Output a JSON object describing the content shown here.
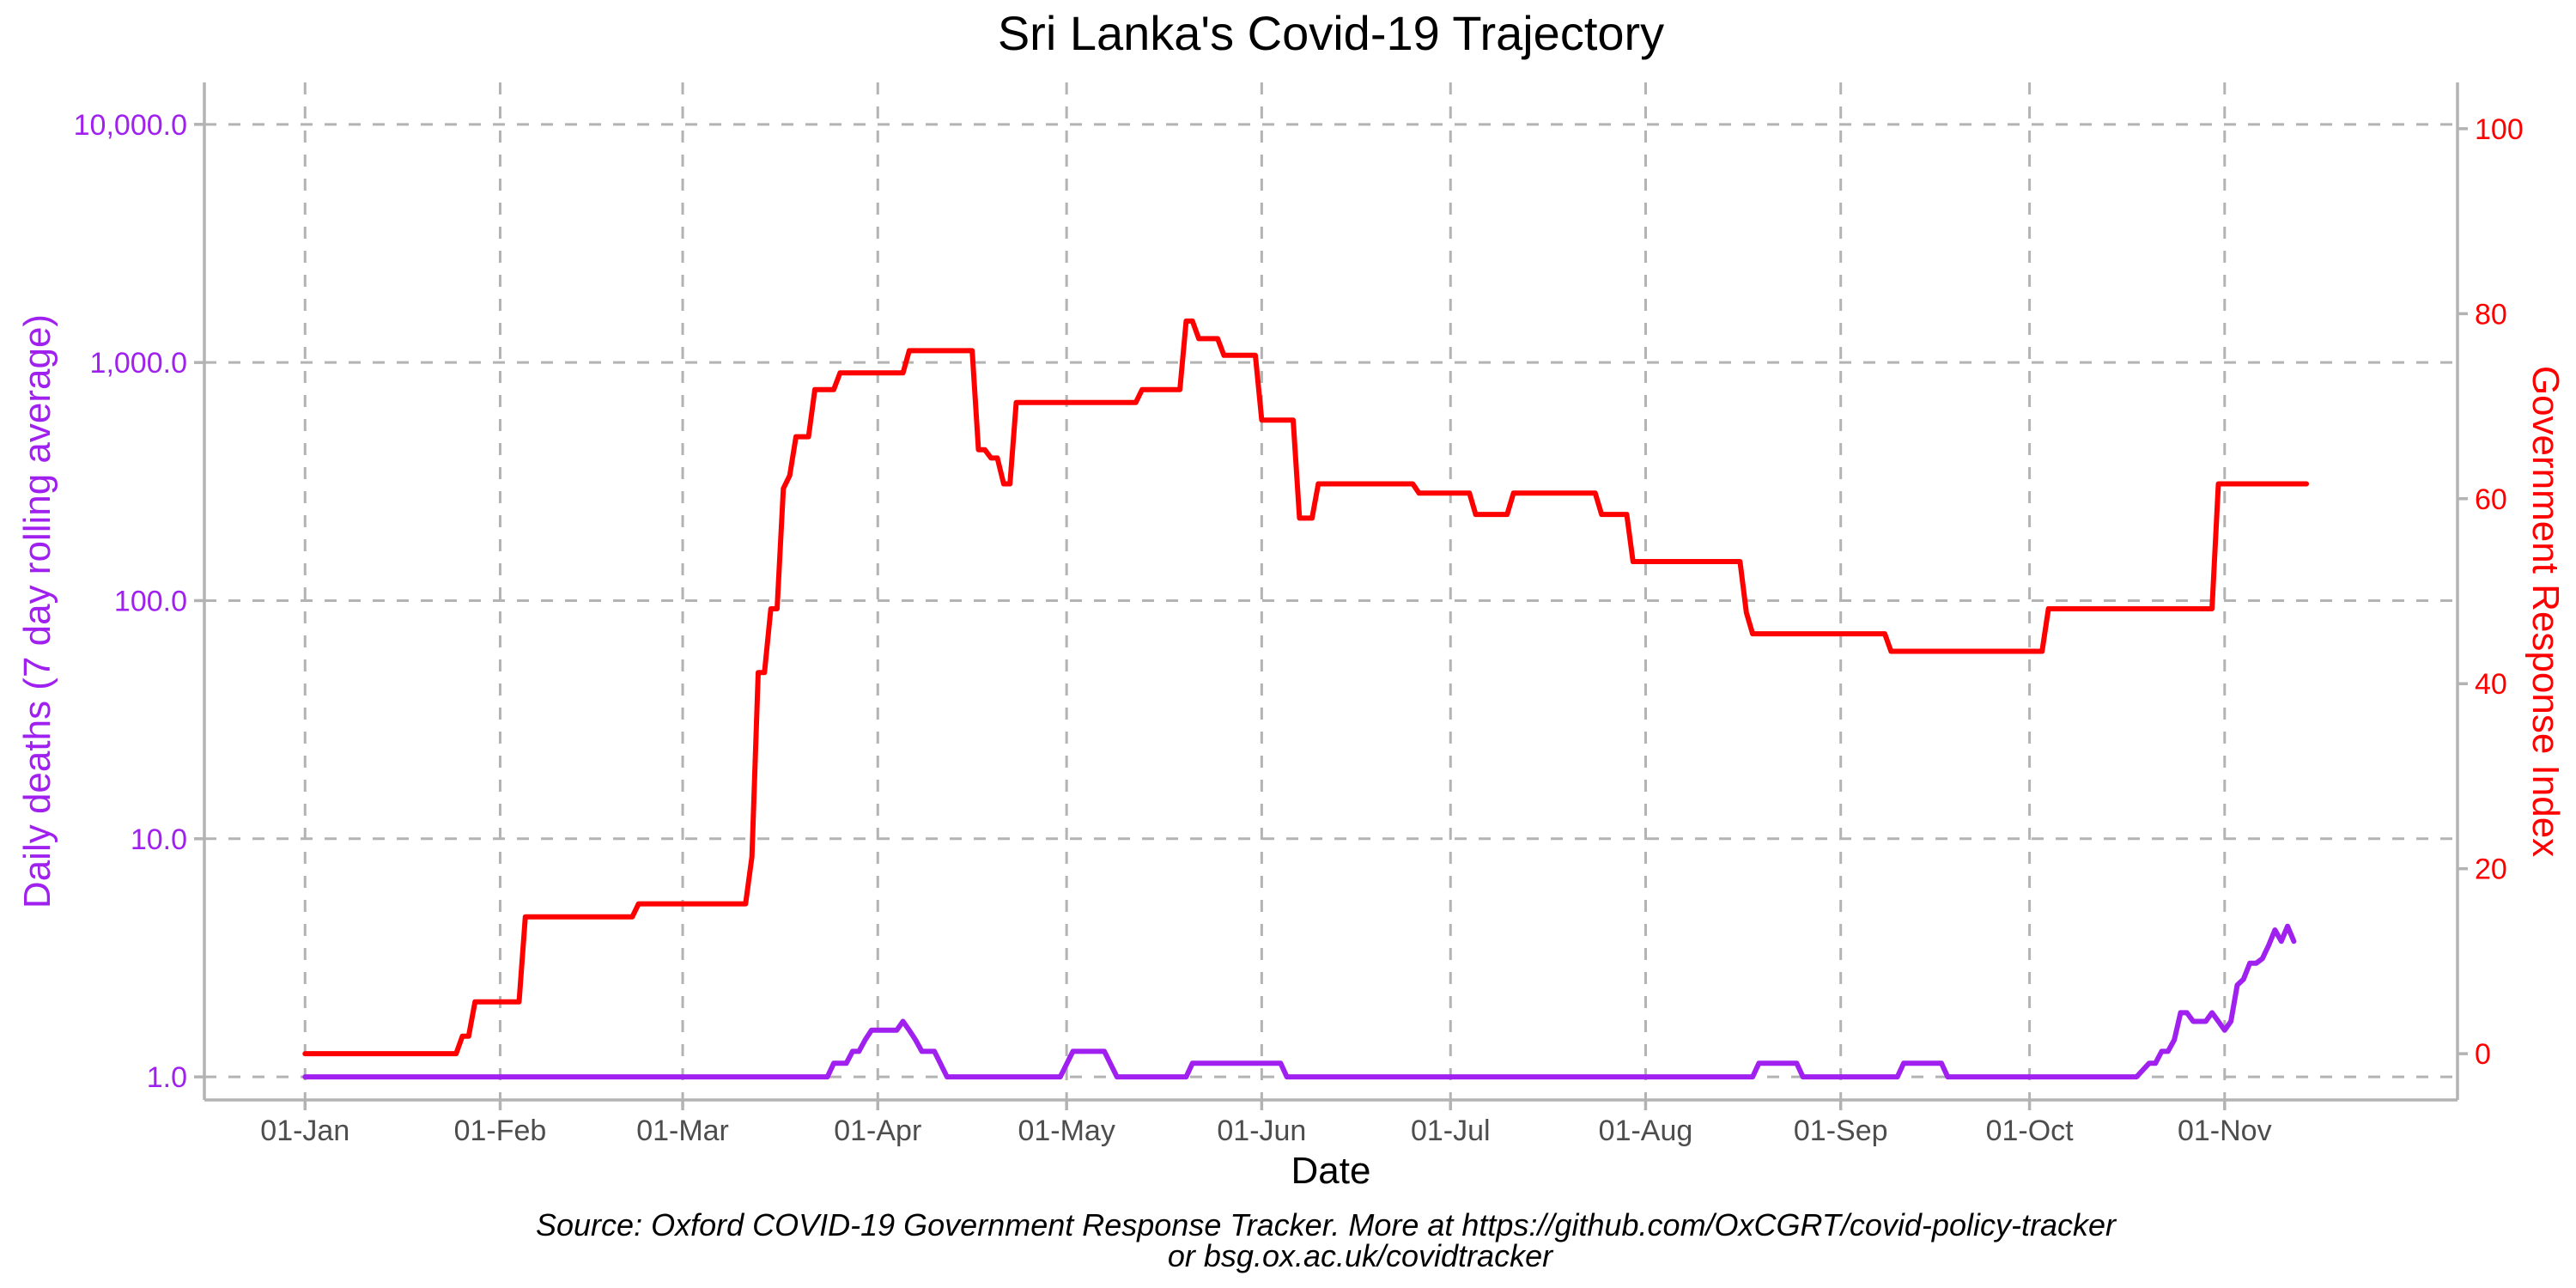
{
  "chart_data": {
    "type": "line",
    "title": "Sri Lanka's Covid-19 Trajectory",
    "xlabel": "Date",
    "ylabel_left": "Daily deaths (7 day rolling average)",
    "ylabel_right": "Government Response Index",
    "caption_lines": [
      "Source: Oxford COVID-19 Government Response Tracker. More at https://github.com/OxCGRT/covid-policy-tracker",
      "or bsg.ox.ac.uk/covidtracker"
    ],
    "x_range": [
      "2019-12-16",
      "2020-12-08"
    ],
    "x_ticks": [
      {
        "label": "01-Jan",
        "date": "2020-01-01"
      },
      {
        "label": "01-Feb",
        "date": "2020-02-01"
      },
      {
        "label": "01-Mar",
        "date": "2020-03-01"
      },
      {
        "label": "01-Apr",
        "date": "2020-04-01"
      },
      {
        "label": "01-May",
        "date": "2020-05-01"
      },
      {
        "label": "01-Jun",
        "date": "2020-06-01"
      },
      {
        "label": "01-Jul",
        "date": "2020-07-01"
      },
      {
        "label": "01-Aug",
        "date": "2020-08-01"
      },
      {
        "label": "01-Sep",
        "date": "2020-09-01"
      },
      {
        "label": "01-Oct",
        "date": "2020-10-01"
      },
      {
        "label": "01-Nov",
        "date": "2020-11-01"
      }
    ],
    "y_left": {
      "scale": "log10",
      "range": [
        0.8,
        15000
      ],
      "ticks": [
        {
          "label": "1.0",
          "value": 1
        },
        {
          "label": "10.0",
          "value": 10
        },
        {
          "label": "100.0",
          "value": 100
        },
        {
          "label": "1,000.0",
          "value": 1000
        },
        {
          "label": "10,000.0",
          "value": 10000
        }
      ]
    },
    "y_right": {
      "scale": "linear",
      "range": [
        -5,
        105
      ],
      "ticks": [
        {
          "label": "0",
          "value": 0
        },
        {
          "label": "20",
          "value": 20
        },
        {
          "label": "40",
          "value": 40
        },
        {
          "label": "60",
          "value": 60
        },
        {
          "label": "80",
          "value": 80
        },
        {
          "label": "100",
          "value": 100
        }
      ]
    },
    "grid": true,
    "colors": {
      "deaths": "#a020f0",
      "stringency": "#ff0000",
      "grid": "#b3b3b3",
      "axis": "#b3b3b3"
    },
    "series": [
      {
        "axis": "right",
        "color": "#ff0000",
        "points": [
          [
            "2020-01-01",
            0
          ],
          [
            "2020-01-25",
            0
          ],
          [
            "2020-01-26",
            1.9
          ],
          [
            "2020-01-27",
            1.9
          ],
          [
            "2020-01-28",
            5.6
          ],
          [
            "2020-02-04",
            5.6
          ],
          [
            "2020-02-05",
            14.8
          ],
          [
            "2020-02-22",
            14.8
          ],
          [
            "2020-02-23",
            16.2
          ],
          [
            "2020-03-11",
            16.2
          ],
          [
            "2020-03-12",
            21.3
          ],
          [
            "2020-03-13",
            41.2
          ],
          [
            "2020-03-14",
            41.2
          ],
          [
            "2020-03-15",
            48.1
          ],
          [
            "2020-03-16",
            48.1
          ],
          [
            "2020-03-17",
            61.1
          ],
          [
            "2020-03-18",
            62.5
          ],
          [
            "2020-03-19",
            66.7
          ],
          [
            "2020-03-20",
            66.7
          ],
          [
            "2020-03-21",
            66.7
          ],
          [
            "2020-03-22",
            71.8
          ],
          [
            "2020-03-25",
            71.8
          ],
          [
            "2020-03-26",
            73.6
          ],
          [
            "2020-04-05",
            73.6
          ],
          [
            "2020-04-06",
            76.0
          ],
          [
            "2020-04-16",
            76.0
          ],
          [
            "2020-04-17",
            65.3
          ],
          [
            "2020-04-18",
            65.3
          ],
          [
            "2020-04-19",
            64.4
          ],
          [
            "2020-04-20",
            64.4
          ],
          [
            "2020-04-21",
            61.6
          ],
          [
            "2020-04-22",
            61.6
          ],
          [
            "2020-04-23",
            70.4
          ],
          [
            "2020-05-12",
            70.4
          ],
          [
            "2020-05-13",
            71.8
          ],
          [
            "2020-05-19",
            71.8
          ],
          [
            "2020-05-20",
            79.2
          ],
          [
            "2020-05-21",
            79.2
          ],
          [
            "2020-05-22",
            77.3
          ],
          [
            "2020-05-25",
            77.3
          ],
          [
            "2020-05-26",
            75.5
          ],
          [
            "2020-05-31",
            75.5
          ],
          [
            "2020-06-01",
            68.5
          ],
          [
            "2020-06-06",
            68.5
          ],
          [
            "2020-06-07",
            57.9
          ],
          [
            "2020-06-09",
            57.9
          ],
          [
            "2020-06-10",
            61.6
          ],
          [
            "2020-06-25",
            61.6
          ],
          [
            "2020-06-26",
            60.6
          ],
          [
            "2020-07-04",
            60.6
          ],
          [
            "2020-07-05",
            58.3
          ],
          [
            "2020-07-10",
            58.3
          ],
          [
            "2020-07-11",
            60.6
          ],
          [
            "2020-07-24",
            60.6
          ],
          [
            "2020-07-25",
            58.3
          ],
          [
            "2020-07-29",
            58.3
          ],
          [
            "2020-07-30",
            53.2
          ],
          [
            "2020-08-16",
            53.2
          ],
          [
            "2020-08-17",
            47.7
          ],
          [
            "2020-08-18",
            45.4
          ],
          [
            "2020-09-08",
            45.4
          ],
          [
            "2020-09-09",
            43.5
          ],
          [
            "2020-10-03",
            43.5
          ],
          [
            "2020-10-04",
            48.1
          ],
          [
            "2020-10-30",
            48.1
          ],
          [
            "2020-10-31",
            61.6
          ],
          [
            "2020-11-14",
            61.6
          ]
        ]
      },
      {
        "axis": "left",
        "color": "#a020f0",
        "points": [
          [
            "2020-01-01",
            1.0
          ],
          [
            "2020-03-24",
            1.0
          ],
          [
            "2020-03-25",
            1.14
          ],
          [
            "2020-03-27",
            1.14
          ],
          [
            "2020-03-28",
            1.28
          ],
          [
            "2020-03-29",
            1.28
          ],
          [
            "2020-03-30",
            1.43
          ],
          [
            "2020-03-31",
            1.57
          ],
          [
            "2020-04-04",
            1.57
          ],
          [
            "2020-04-05",
            1.71
          ],
          [
            "2020-04-06",
            1.57
          ],
          [
            "2020-04-07",
            1.43
          ],
          [
            "2020-04-08",
            1.28
          ],
          [
            "2020-04-10",
            1.28
          ],
          [
            "2020-04-12",
            1.0
          ],
          [
            "2020-04-30",
            1.0
          ],
          [
            "2020-05-02",
            1.28
          ],
          [
            "2020-05-07",
            1.28
          ],
          [
            "2020-05-09",
            1.0
          ],
          [
            "2020-05-20",
            1.0
          ],
          [
            "2020-05-21",
            1.14
          ],
          [
            "2020-06-04",
            1.14
          ],
          [
            "2020-06-05",
            1.0
          ],
          [
            "2020-08-18",
            1.0
          ],
          [
            "2020-08-19",
            1.14
          ],
          [
            "2020-08-25",
            1.14
          ],
          [
            "2020-08-26",
            1.0
          ],
          [
            "2020-09-10",
            1.0
          ],
          [
            "2020-09-11",
            1.14
          ],
          [
            "2020-09-17",
            1.14
          ],
          [
            "2020-09-18",
            1.0
          ],
          [
            "2020-10-18",
            1.0
          ],
          [
            "2020-10-20",
            1.14
          ],
          [
            "2020-10-21",
            1.14
          ],
          [
            "2020-10-22",
            1.28
          ],
          [
            "2020-10-23",
            1.28
          ],
          [
            "2020-10-24",
            1.43
          ],
          [
            "2020-10-25",
            1.86
          ],
          [
            "2020-10-26",
            1.86
          ],
          [
            "2020-10-27",
            1.71
          ],
          [
            "2020-10-29",
            1.71
          ],
          [
            "2020-10-30",
            1.86
          ],
          [
            "2020-10-31",
            1.71
          ],
          [
            "2020-11-01",
            1.57
          ],
          [
            "2020-11-02",
            1.71
          ],
          [
            "2020-11-03",
            2.43
          ],
          [
            "2020-11-04",
            2.57
          ],
          [
            "2020-11-05",
            3.0
          ],
          [
            "2020-11-06",
            3.0
          ],
          [
            "2020-11-07",
            3.14
          ],
          [
            "2020-11-08",
            3.57
          ],
          [
            "2020-11-09",
            4.14
          ],
          [
            "2020-11-10",
            3.71
          ],
          [
            "2020-11-11",
            4.29
          ],
          [
            "2020-11-12",
            3.71
          ]
        ]
      }
    ]
  }
}
